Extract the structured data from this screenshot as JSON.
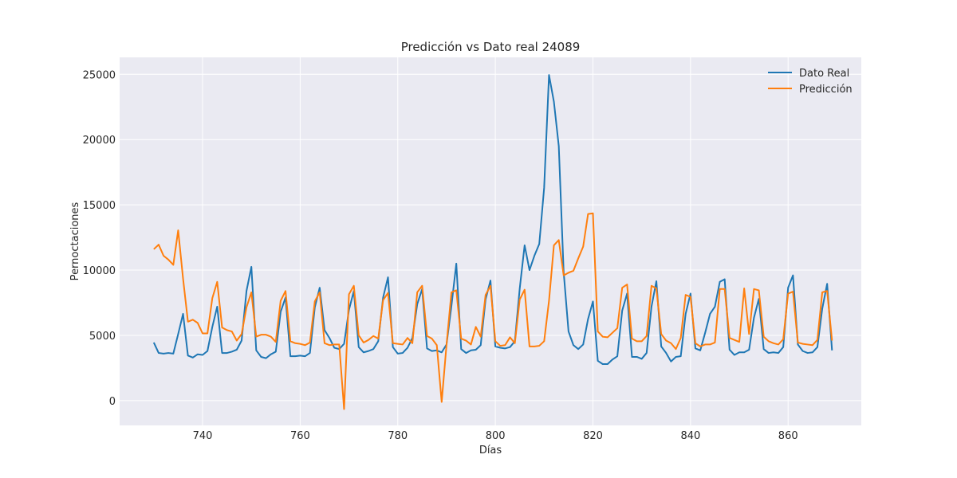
{
  "chart_data": {
    "type": "line",
    "title": "Predicción vs Dato real 24089",
    "xlabel": "Días",
    "ylabel": "Pernoctaciones",
    "xlim": [
      723,
      875
    ],
    "ylim": [
      -1900,
      26300
    ],
    "xticks": [
      740,
      760,
      780,
      800,
      820,
      840,
      860
    ],
    "yticks": [
      0,
      5000,
      10000,
      15000,
      20000,
      25000
    ],
    "grid": true,
    "legend_position": "top-right",
    "x_start": 730,
    "series": [
      {
        "name": "Dato Real",
        "color": "#1f77b4",
        "values": [
          4450,
          3650,
          3600,
          3650,
          3600,
          5100,
          6650,
          3450,
          3300,
          3550,
          3500,
          3800,
          5650,
          7200,
          3650,
          3650,
          3750,
          3900,
          4600,
          8400,
          10250,
          3850,
          3350,
          3250,
          3550,
          3750,
          6800,
          7900,
          3400,
          3400,
          3450,
          3400,
          3650,
          7150,
          8650,
          5400,
          4800,
          4050,
          3950,
          4350,
          6950,
          8400,
          4100,
          3700,
          3800,
          3950,
          4550,
          7900,
          9450,
          4100,
          3600,
          3650,
          4050,
          4800,
          7400,
          8550,
          4000,
          3800,
          3850,
          3700,
          4300,
          7250,
          10500,
          3950,
          3650,
          3850,
          3900,
          4250,
          7750,
          9200,
          4150,
          4050,
          4000,
          4100,
          4550,
          8600,
          11900,
          10000,
          11100,
          12000,
          16300,
          24950,
          22900,
          19500,
          9850,
          5300,
          4250,
          3950,
          4300,
          6250,
          7600,
          3050,
          2800,
          2800,
          3150,
          3400,
          6900,
          8200,
          3350,
          3350,
          3200,
          3650,
          7200,
          9150,
          4150,
          3650,
          3000,
          3350,
          3400,
          6650,
          8200,
          4000,
          3850,
          5200,
          6650,
          7200,
          9100,
          9300,
          3900,
          3500,
          3700,
          3700,
          3900,
          6350,
          7800,
          3950,
          3650,
          3700,
          3650,
          4100,
          8650,
          9600,
          4300,
          3800,
          3650,
          3700,
          4100,
          7050,
          8950,
          3850
        ]
      },
      {
        "name": "Predicción",
        "color": "#ff7f0e",
        "values": [
          11600,
          11950,
          11100,
          10800,
          10400,
          13050,
          9350,
          6050,
          6200,
          5950,
          5150,
          5150,
          7850,
          9100,
          5600,
          5400,
          5300,
          4600,
          5100,
          7150,
          8300,
          4900,
          5050,
          5050,
          4900,
          4500,
          7650,
          8400,
          4550,
          4400,
          4350,
          4250,
          4450,
          7600,
          8300,
          4400,
          4250,
          4300,
          4300,
          -650,
          8150,
          8800,
          5000,
          4450,
          4650,
          4950,
          4750,
          7700,
          8250,
          4400,
          4350,
          4300,
          4800,
          4400,
          8300,
          8800,
          4950,
          4750,
          4250,
          -100,
          4300,
          8300,
          8450,
          4750,
          4600,
          4300,
          5650,
          4900,
          8100,
          8800,
          4550,
          4200,
          4250,
          4850,
          4400,
          7750,
          8500,
          4150,
          4150,
          4200,
          4550,
          7650,
          11900,
          12300,
          9600,
          9800,
          9950,
          10900,
          11800,
          14300,
          14350,
          5300,
          4900,
          4850,
          5200,
          5550,
          8650,
          8900,
          4750,
          4550,
          4550,
          4950,
          8800,
          8600,
          5100,
          4600,
          4400,
          3950,
          4800,
          8100,
          7950,
          4400,
          4150,
          4300,
          4300,
          4450,
          8550,
          8550,
          4800,
          4650,
          4500,
          8600,
          5100,
          8550,
          8450,
          4900,
          4550,
          4400,
          4300,
          4700,
          8200,
          8350,
          4450,
          4350,
          4300,
          4250,
          4650,
          8300,
          8400,
          4600
        ]
      }
    ]
  }
}
